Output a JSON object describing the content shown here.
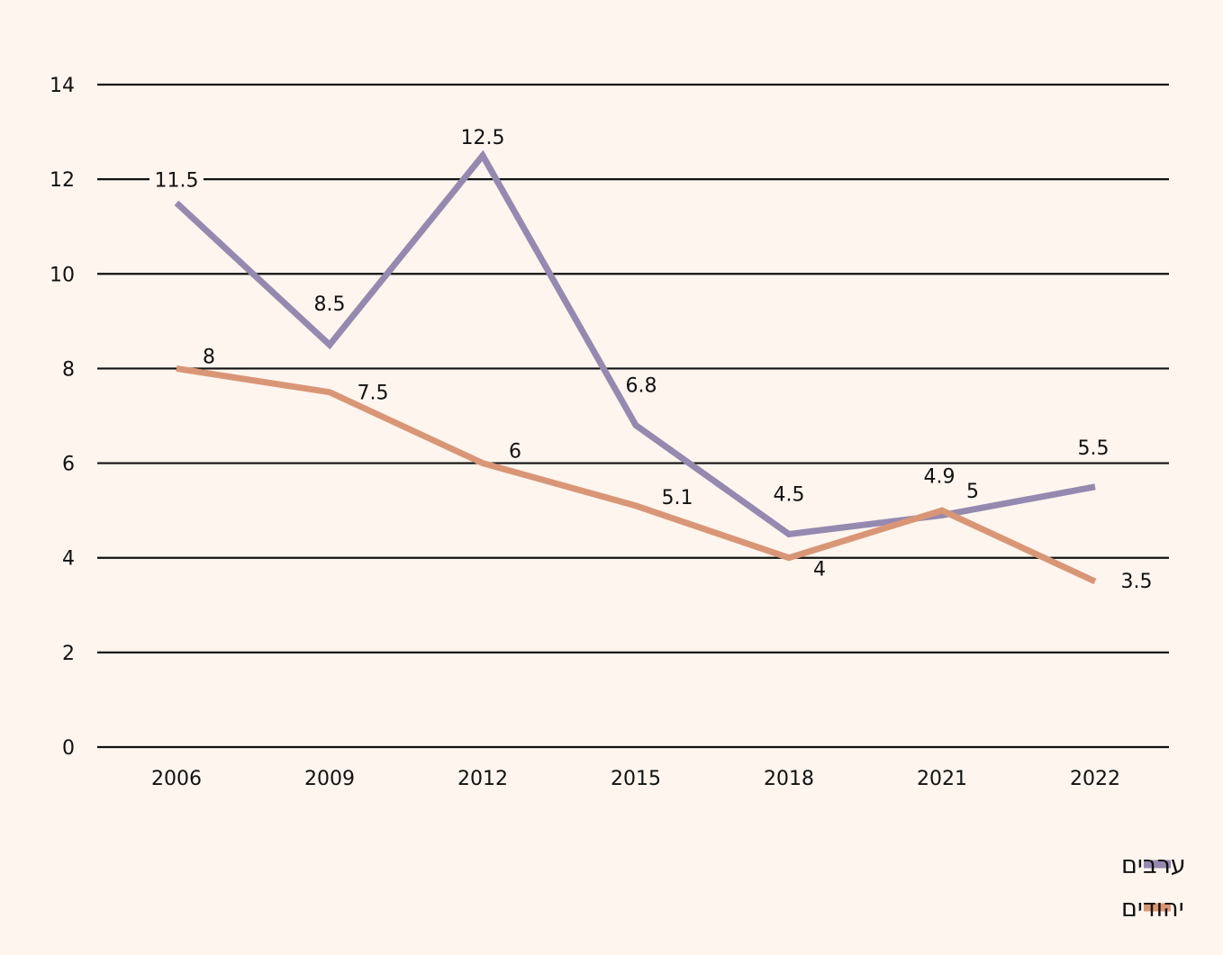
{
  "chart_data": {
    "type": "line",
    "title": "",
    "xlabel": "",
    "ylabel": "",
    "categories": [
      "2006",
      "2009",
      "2012",
      "2015",
      "2018",
      "2021",
      "2022"
    ],
    "ylim": [
      0,
      14
    ],
    "yticks": [
      "0",
      "2",
      "4",
      "6",
      "8",
      "10",
      "12",
      "14"
    ],
    "grid": true,
    "legend_position": "bottom-right",
    "series": [
      {
        "name": "ערבים",
        "color": "#9589b0",
        "values": [
          11.5,
          8.5,
          12.5,
          6.8,
          4.5,
          4.9,
          5.5
        ],
        "labels": [
          "11.5",
          "8.5",
          "12.5",
          "6.8",
          "4.5",
          "4.9",
          "5.5"
        ]
      },
      {
        "name": "יהודים",
        "color": "#d99676",
        "values": [
          8,
          7.5,
          6,
          5.1,
          4,
          5,
          3.5
        ],
        "labels": [
          "8",
          "7.5",
          "6",
          "5.1",
          "4",
          "5",
          "3.5"
        ]
      }
    ]
  }
}
